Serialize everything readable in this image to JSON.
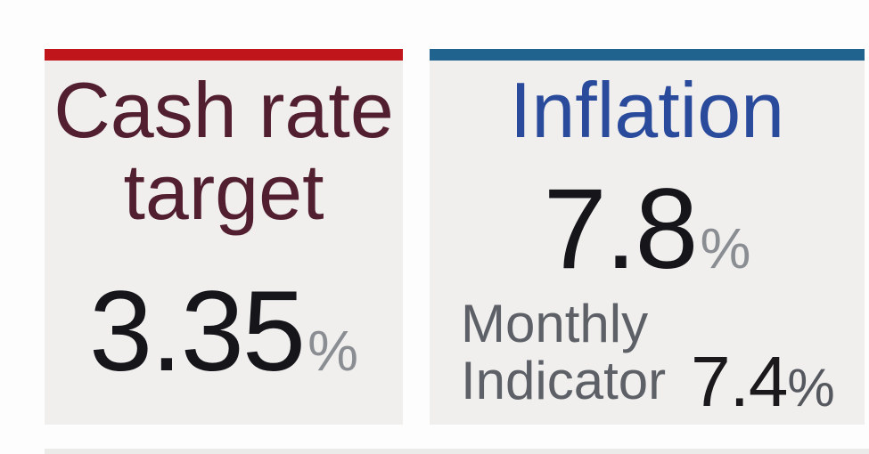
{
  "page": {
    "background": "#fdfdfd"
  },
  "cards": [
    {
      "id": "cash-rate",
      "accent_color": "#c1151c",
      "title_color": "#521f30",
      "title_lines": [
        "Cash rate",
        "target"
      ],
      "value": "3.35",
      "unit": "%"
    },
    {
      "id": "inflation",
      "accent_color": "#20638f",
      "title_color": "#2a4a9c",
      "title_lines": [
        "Inflation"
      ],
      "value": "7.8",
      "unit": "%",
      "secondary": {
        "label_line1": "Monthly",
        "label_line2": "Indicator",
        "value": "7.4",
        "unit": "%"
      }
    }
  ],
  "colors": {
    "card_background": "#f0efee",
    "value_color": "#16151a",
    "unit_color": "#8a8e93",
    "secondary_text_color": "#5d6066",
    "next_row_edge_color": "#ebebe9"
  }
}
